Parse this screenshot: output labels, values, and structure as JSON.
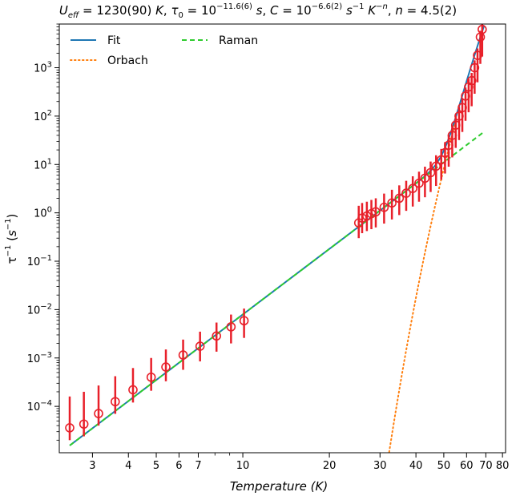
{
  "chart_data": {
    "type": "scatter",
    "title": "U_eff = 1230(90) K, τ0 = 10^−11.6(6) s, C = 10^−6.6(2) s^−1 K^−n, n = 4.5(2)",
    "title_parts": {
      "ueff_sym": "U",
      "ueff_sub": "eff",
      "ueff_val": " = 1230(90) ",
      "k1": "K",
      "comma1": ", ",
      "tau_sym": "τ",
      "tau_sub": "0",
      "tau_eq": " = 10",
      "tau_exp": "−11.6(6)",
      "s1": " s",
      "comma2": ", ",
      "c_sym": "C",
      "c_eq": " = 10",
      "c_exp": "−6.6(2)",
      "s2": " s",
      "s2_exp": "−1",
      "k2": " K",
      "k2_exp": "−n",
      "comma3": ", ",
      "n_sym": "n",
      "n_val": " = 4.5(2)"
    },
    "xlabel": "Temperature (K)",
    "xlabel_parts": {
      "main": "Temperature (",
      "unit": "K",
      "close": ")"
    },
    "ylabel": "τ^−1 (s^−1)",
    "ylabel_parts": {
      "tau": "τ",
      "tau_exp": "−1",
      "open": " (",
      "s": "s",
      "s_exp": "−1",
      "close": ")"
    },
    "x_scale": "log",
    "y_scale": "log",
    "xlim": [
      2.3,
      82
    ],
    "ylim": [
      1.1e-05,
      8000
    ],
    "x_ticks": [
      3,
      4,
      5,
      6,
      7,
      10,
      20,
      30,
      40,
      50,
      60,
      70,
      80
    ],
    "x_tick_labels": [
      "3",
      "4",
      "5",
      "6",
      "7",
      "10",
      "20",
      "30",
      "40",
      "50",
      "60",
      "70",
      "80"
    ],
    "y_ticks": [
      0.0001,
      0.001,
      0.01,
      0.1,
      1,
      10,
      100,
      1000
    ],
    "y_tick_labels": [
      {
        "base": "10",
        "exp": "−4"
      },
      {
        "base": "10",
        "exp": "−3"
      },
      {
        "base": "10",
        "exp": "−2"
      },
      {
        "base": "10",
        "exp": "−1"
      },
      {
        "base": "10",
        "exp": "0"
      },
      {
        "base": "10",
        "exp": "1"
      },
      {
        "base": "10",
        "exp": "2"
      },
      {
        "base": "10",
        "exp": "3"
      }
    ],
    "legend_position": "top-left",
    "legend": [
      {
        "label": "Fit",
        "color": "#1f77b4",
        "style": "solid"
      },
      {
        "label": "Orbach",
        "color": "#ff7f0e",
        "style": "dotted"
      },
      {
        "label": "Raman",
        "color": "#2ecc2e",
        "style": "dashed"
      }
    ],
    "series": [
      {
        "kind": "data",
        "color": "#e8202a",
        "x": [
          2.5,
          2.8,
          3.15,
          3.6,
          4.15,
          4.8,
          5.4,
          6.2,
          7.1,
          8.1,
          9.1,
          10.1,
          25.3,
          26.0,
          27.0,
          28.0,
          29.0,
          31.0,
          33.0,
          35.0,
          37.0,
          39.0,
          41.0,
          43.0,
          45.0,
          47.0,
          49.0,
          50.5,
          52.0,
          53.5,
          55.0,
          56.5,
          58.0,
          59.5,
          61.0,
          62.5,
          64.0,
          65.5,
          67.0,
          68.0
        ],
        "y": [
          3.6e-05,
          4.3e-05,
          7.1e-05,
          0.000125,
          0.00022,
          0.0004,
          0.00065,
          0.00115,
          0.00175,
          0.00285,
          0.0044,
          0.0059,
          0.62,
          0.78,
          0.86,
          0.96,
          1.05,
          1.3,
          1.6,
          2.0,
          2.55,
          3.2,
          4.1,
          5.2,
          6.8,
          9.2,
          12.5,
          17.5,
          25,
          40,
          65,
          100,
          150,
          260,
          400,
          540,
          1000,
          1800,
          4300,
          6200
        ],
        "err_lo": [
          2e-05,
          2.4e-05,
          4e-05,
          7e-05,
          0.00012,
          0.00021,
          0.00033,
          0.00057,
          0.00085,
          0.00135,
          0.002,
          0.0026,
          0.3,
          0.38,
          0.42,
          0.46,
          0.5,
          0.6,
          0.73,
          0.9,
          1.1,
          1.35,
          1.7,
          2.1,
          2.7,
          3.6,
          4.8,
          6.5,
          9,
          14,
          22,
          32,
          47,
          80,
          120,
          160,
          290,
          500,
          1200,
          1700
        ],
        "err_hi": [
          0.00016,
          0.0002,
          0.00027,
          0.00042,
          0.00062,
          0.001,
          0.0015,
          0.0024,
          0.0035,
          0.0054,
          0.0079,
          0.0105,
          1.4,
          1.6,
          1.7,
          1.85,
          2.0,
          2.5,
          3.0,
          3.7,
          4.6,
          5.7,
          7.1,
          9.0,
          11.5,
          15.5,
          21,
          29,
          41,
          64,
          102,
          155,
          230,
          390,
          590,
          780,
          1420,
          2500,
          5800,
          8000
        ]
      },
      {
        "kind": "fit",
        "name": "Fit",
        "color": "#1f77b4",
        "style": "solid",
        "model": "C*T^n + (1/tau0)*exp(-Ueff/T)",
        "params": {
          "log10_C": -6.6,
          "n": 4.5,
          "log10_tau0": -11.6,
          "Ueff": 1230
        },
        "x_range": [
          2.5,
          69
        ]
      },
      {
        "kind": "model",
        "name": "Orbach",
        "color": "#ff7f0e",
        "style": "dotted",
        "model": "(1/tau0)*exp(-Ueff/T)",
        "params": {
          "log10_tau0": -11.6,
          "Ueff": 1230
        },
        "x_range": [
          30,
          55
        ]
      },
      {
        "kind": "model",
        "name": "Raman",
        "color": "#2ecc2e",
        "style": "dashed",
        "model": "C*T^n",
        "params": {
          "log10_C": -6.6,
          "n": 4.5
        },
        "x_range": [
          2.5,
          69
        ]
      }
    ]
  }
}
